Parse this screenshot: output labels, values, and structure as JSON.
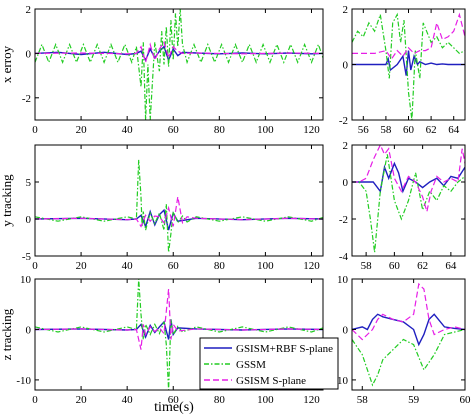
{
  "chart_data": {
    "type": "line",
    "xlabel": "time(s)",
    "legend": {
      "placement": "bottom-right of lower-left panel",
      "entries": [
        {
          "name": "GSISM+RBF S-plane",
          "color": "#1f1fbf",
          "dash": "solid"
        },
        {
          "name": "GSSM",
          "color": "#22cc22",
          "dash": "dash-dot"
        },
        {
          "name": "GSISM S-plane",
          "color": "#e61ee6",
          "dash": "dashed"
        }
      ]
    },
    "panels": [
      {
        "id": "x-full",
        "ylabel": "x erroy",
        "xlim": [
          0,
          125
        ],
        "ylim": [
          -3,
          2
        ],
        "xticks": [
          "0",
          "20",
          "40",
          "60",
          "80",
          "100",
          "120"
        ],
        "yticks": [
          "-2",
          "0",
          "2"
        ],
        "series": [
          {
            "name": "GSISM+RBF S-plane",
            "x": [
              0,
              10,
              20,
              30,
              40,
              44,
              46,
              48,
              50,
              52,
              54,
              56,
              58,
              60,
              62,
              64,
              70,
              80,
              90,
              100,
              110,
              120,
              125
            ],
            "y": [
              0,
              0.05,
              -0.05,
              0.05,
              -0.05,
              0,
              0.1,
              -0.3,
              0.2,
              -0.2,
              0.1,
              0.3,
              -0.3,
              0.2,
              -0.1,
              0.05,
              0.02,
              -0.02,
              0.02,
              -0.02,
              0.02,
              -0.02,
              0
            ]
          },
          {
            "name": "GSSM",
            "x": [
              0,
              3,
              6,
              9,
              12,
              15,
              18,
              21,
              24,
              27,
              30,
              33,
              36,
              39,
              42,
              44,
              46,
              47,
              48,
              49,
              50,
              52,
              54,
              55,
              56,
              57,
              58,
              59,
              60,
              61,
              62,
              63,
              64,
              66,
              69,
              72,
              75,
              78,
              81,
              84,
              87,
              90,
              93,
              96,
              99,
              102,
              105,
              108,
              111,
              114,
              117,
              120,
              123,
              125
            ],
            "y": [
              -0.4,
              0.4,
              -0.4,
              0.4,
              -0.4,
              0.4,
              -0.4,
              0.4,
              -0.4,
              0.4,
              -0.4,
              0.4,
              -0.4,
              0.4,
              -0.4,
              0.3,
              -1.5,
              0.5,
              -3,
              -0.5,
              -3,
              0.5,
              -0.8,
              1.0,
              -0.5,
              1.2,
              -0.6,
              1.5,
              -0.3,
              1.8,
              0.3,
              2.0,
              0.4,
              -0.4,
              0.4,
              -0.4,
              0.4,
              -0.4,
              0.4,
              -0.4,
              0.4,
              -0.4,
              0.4,
              -0.4,
              0.4,
              -0.4,
              0.4,
              -0.4,
              0.4,
              -0.4,
              0.4,
              -0.4,
              0.4,
              -0.2
            ]
          },
          {
            "name": "GSISM S-plane",
            "x": [
              0,
              20,
              40,
              44,
              46,
              48,
              50,
              52,
              54,
              56,
              58,
              60,
              62,
              64,
              70,
              90,
              110,
              125
            ],
            "y": [
              0,
              0.02,
              -0.02,
              0,
              0.3,
              -0.4,
              0.4,
              -0.3,
              0.2,
              0.5,
              -0.2,
              0.3,
              0.1,
              0,
              0.02,
              -0.02,
              0.02,
              0
            ]
          }
        ]
      },
      {
        "id": "x-zoom",
        "ylabel": "",
        "xlim": [
          55,
          65
        ],
        "ylim": [
          -2,
          2
        ],
        "xticks": [
          "56",
          "58",
          "60",
          "62",
          "64"
        ],
        "yticks": [
          "-2",
          "0",
          "2"
        ],
        "series": [
          {
            "name": "GSISM+RBF S-plane",
            "x": [
              55,
              56,
              57,
              58,
              58.2,
              58.4,
              59,
              59.5,
              59.8,
              60,
              60.2,
              60.5,
              60.8,
              61,
              61.5,
              62,
              62.5,
              63,
              63.5,
              64,
              64.5,
              65
            ],
            "y": [
              0,
              0,
              0,
              0,
              0.2,
              -0.2,
              0,
              0.3,
              -0.4,
              0.5,
              -0.2,
              0.3,
              0,
              0.1,
              0,
              0.05,
              0,
              0.02,
              0,
              0,
              0,
              0
            ]
          },
          {
            "name": "GSSM",
            "x": [
              55,
              55.5,
              56,
              56.5,
              57,
              57.5,
              58,
              58.3,
              58.6,
              59,
              59.3,
              59.6,
              60,
              60.3,
              60.6,
              61,
              61.3,
              61.6,
              62,
              62.5,
              63,
              63.5,
              64,
              64.5,
              65
            ],
            "y": [
              0.8,
              1.2,
              1.0,
              1.5,
              1.2,
              1.8,
              0.5,
              -0.5,
              1.5,
              1.8,
              0.8,
              1.6,
              -1.0,
              -2.0,
              0.5,
              -0.5,
              1.5,
              1.2,
              0.8,
              1.0,
              0.6,
              0.8,
              0.6,
              0.4,
              0.5
            ]
          },
          {
            "name": "GSISM S-plane",
            "x": [
              55,
              56,
              57,
              58,
              58.5,
              59,
              59.5,
              60,
              60.5,
              61,
              61.5,
              62,
              62.5,
              63,
              63.5,
              64,
              64.5,
              65
            ],
            "y": [
              0.4,
              0.4,
              0.4,
              0.5,
              0.2,
              0.5,
              0.3,
              0.6,
              0.4,
              0.5,
              0.5,
              0.6,
              1.5,
              0.9,
              1.0,
              1.2,
              1.8,
              1.0
            ]
          }
        ]
      },
      {
        "id": "y-full",
        "ylabel": "y tracking",
        "xlim": [
          0,
          125
        ],
        "ylim": [
          -5,
          10
        ],
        "xticks": [
          "0",
          "20",
          "40",
          "60",
          "80",
          "100",
          "120"
        ],
        "yticks": [
          "-5",
          "0",
          "5"
        ],
        "series": [
          {
            "name": "GSISM+RBF S-plane",
            "x": [
              0,
              20,
              40,
              44,
              46,
              48,
              50,
              52,
              54,
              56,
              58,
              60,
              62,
              70,
              90,
              110,
              125
            ],
            "y": [
              0,
              0.1,
              -0.1,
              0,
              0.5,
              -1,
              1,
              -0.8,
              0.6,
              1.2,
              -1.5,
              0.8,
              -0.3,
              0.1,
              -0.1,
              0.1,
              0
            ]
          },
          {
            "name": "GSSM",
            "x": [
              0,
              10,
              20,
              30,
              40,
              44,
              45,
              46,
              46.5,
              47,
              48,
              50,
              52,
              54,
              56,
              57,
              58,
              59,
              60,
              62,
              64,
              66,
              70,
              80,
              90,
              100,
              110,
              120,
              125
            ],
            "y": [
              0.3,
              -0.3,
              0.3,
              -0.3,
              0.3,
              0,
              8,
              3,
              -1,
              1,
              -1.5,
              0.8,
              -0.6,
              0.8,
              -1.5,
              2,
              -4.5,
              -2,
              1,
              -0.5,
              0.4,
              -0.4,
              0.3,
              -0.3,
              0.3,
              -0.3,
              0.3,
              -0.3,
              0.2
            ]
          },
          {
            "name": "GSISM S-plane",
            "x": [
              0,
              20,
              40,
              44,
              46,
              48,
              50,
              52,
              54,
              56,
              58,
              60,
              62,
              64,
              66,
              70,
              90,
              110,
              125
            ],
            "y": [
              0,
              0.1,
              -0.1,
              0,
              -1,
              0.5,
              -0.3,
              0.4,
              0.3,
              -0.5,
              1.5,
              -1,
              3,
              -0.5,
              0.3,
              0.1,
              -0.1,
              0.1,
              0
            ]
          }
        ]
      },
      {
        "id": "y-zoom",
        "ylabel": "",
        "xlim": [
          57,
          65
        ],
        "ylim": [
          -4,
          2
        ],
        "xticks": [
          "58",
          "60",
          "62",
          "64"
        ],
        "yticks": [
          "-4",
          "-2",
          "0",
          "2"
        ],
        "series": [
          {
            "name": "GSISM+RBF S-plane",
            "x": [
              57,
              58,
              58.5,
              59,
              59.3,
              59.6,
              60,
              60.3,
              60.6,
              61,
              61.5,
              62,
              62.5,
              63,
              63.5,
              64,
              64.5,
              65
            ],
            "y": [
              0,
              0,
              0,
              -0.5,
              0.8,
              0.2,
              1.0,
              0.5,
              -0.5,
              0.2,
              0,
              -0.3,
              0,
              0.2,
              -0.2,
              0.3,
              0.2,
              0.8
            ]
          },
          {
            "name": "GSSM",
            "x": [
              57,
              57.5,
              58,
              58.3,
              58.6,
              59,
              59.5,
              60,
              60.5,
              61,
              61.5,
              62,
              62.5,
              63,
              63.5,
              64,
              64.5,
              65
            ],
            "y": [
              0,
              0,
              -0.5,
              -2,
              -3.8,
              -0.5,
              1.5,
              -1.0,
              -2.0,
              -1.0,
              0.5,
              -1.5,
              -0.5,
              -1.0,
              -0.2,
              -0.5,
              0,
              0.3
            ]
          },
          {
            "name": "GSISM S-plane",
            "x": [
              57,
              57.5,
              58,
              58.5,
              59,
              59.3,
              59.6,
              60,
              60.5,
              61,
              61.5,
              62,
              62.3,
              62.6,
              63,
              63.5,
              64,
              64.5,
              64.8,
              65
            ],
            "y": [
              0,
              0,
              0.2,
              1.2,
              2.0,
              1.5,
              1.8,
              0.2,
              -0.5,
              0.3,
              0,
              -0.8,
              -1.6,
              -0.5,
              0.3,
              0,
              0.2,
              0,
              1.8,
              1.0
            ]
          }
        ]
      },
      {
        "id": "z-full",
        "ylabel": "z tracking",
        "xlim": [
          0,
          125
        ],
        "ylim": [
          -12,
          10
        ],
        "xticks": [
          "0",
          "20",
          "40",
          "60",
          "80",
          "100",
          "120"
        ],
        "yticks": [
          "-10",
          "0",
          "10"
        ],
        "series": [
          {
            "name": "GSISM+RBF S-plane",
            "x": [
              0,
              20,
              40,
              44,
              46,
              48,
              50,
              52,
              54,
              56,
              58,
              59,
              60,
              62,
              70,
              90,
              110,
              125
            ],
            "y": [
              0,
              0.1,
              -0.1,
              0,
              1,
              -1.5,
              0.8,
              -0.6,
              0.5,
              1.5,
              -2,
              2,
              -1,
              0.3,
              0.1,
              -0.1,
              0.1,
              0
            ]
          },
          {
            "name": "GSSM",
            "x": [
              0,
              10,
              20,
              30,
              40,
              44,
              45,
              46,
              47,
              48,
              50,
              52,
              54,
              56,
              57,
              58,
              59,
              60,
              62,
              64,
              70,
              80,
              90,
              100,
              110,
              120,
              125
            ],
            "y": [
              0.5,
              -0.5,
              0.5,
              -0.5,
              0.5,
              0,
              10,
              3,
              -2,
              1,
              -1,
              1,
              -0.8,
              1.5,
              -3,
              -12,
              2,
              -1,
              0.6,
              -0.5,
              0.5,
              -0.5,
              0.5,
              -0.5,
              0.5,
              -0.5,
              0.3
            ]
          },
          {
            "name": "GSISM S-plane",
            "x": [
              0,
              20,
              40,
              44,
              46,
              47,
              48,
              50,
              52,
              54,
              56,
              58,
              59,
              60,
              62,
              70,
              90,
              110,
              125
            ],
            "y": [
              0,
              0.1,
              -0.1,
              0,
              -4,
              1,
              -1,
              0.5,
              -0.4,
              0.3,
              -0.8,
              8,
              -2,
              1,
              -0.3,
              0.1,
              -0.1,
              0.1,
              0
            ]
          }
        ]
      },
      {
        "id": "z-zoom",
        "ylabel": "",
        "xlim": [
          57.8,
          60
        ],
        "ylim": [
          -12,
          10
        ],
        "xticks": [
          "58",
          "59",
          "60"
        ],
        "yticks": [
          "-10",
          "0",
          "10"
        ],
        "series": [
          {
            "name": "GSISM+RBF S-plane",
            "x": [
              57.8,
              58.0,
              58.1,
              58.2,
              58.3,
              58.4,
              58.6,
              58.8,
              59.0,
              59.1,
              59.2,
              59.3,
              59.4,
              59.6,
              59.8,
              60.0
            ],
            "y": [
              0,
              0.5,
              0,
              2,
              3,
              2.5,
              2,
              1.5,
              0,
              -3,
              -1,
              2,
              3,
              0.5,
              0.2,
              0
            ]
          },
          {
            "name": "GSSM",
            "x": [
              57.8,
              58.0,
              58.1,
              58.2,
              58.3,
              58.4,
              58.6,
              58.8,
              59.0,
              59.2,
              59.4,
              59.6,
              59.8,
              60.0
            ],
            "y": [
              -2,
              -5,
              -8,
              -11,
              -9,
              -6,
              -4,
              -2,
              -3,
              -8,
              -5,
              -1,
              -0.5,
              0
            ]
          },
          {
            "name": "GSISM S-plane",
            "x": [
              57.8,
              58.0,
              58.2,
              58.3,
              58.4,
              58.6,
              58.8,
              59.0,
              59.1,
              59.2,
              59.3,
              59.4,
              59.6,
              59.8,
              60.0
            ],
            "y": [
              0,
              -2,
              0,
              2,
              3,
              2,
              1.5,
              3,
              9,
              8,
              2,
              -1,
              0,
              0.5,
              0
            ]
          }
        ]
      }
    ]
  }
}
